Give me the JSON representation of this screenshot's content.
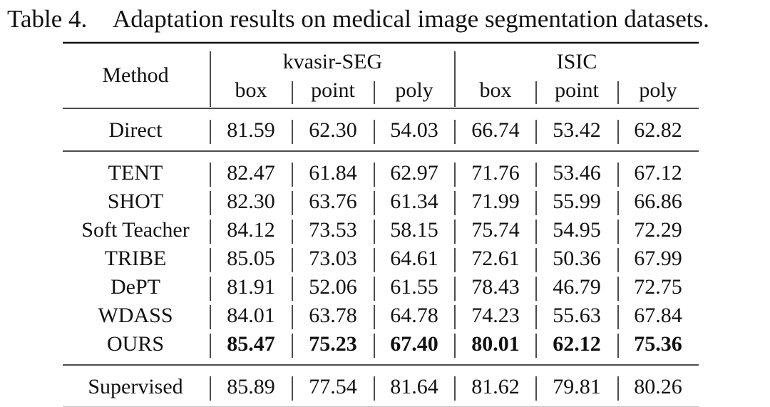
{
  "caption": {
    "label": "Table 4.",
    "text": "Adaptation results on medical image segmentation datasets."
  },
  "table": {
    "method_header": "Method",
    "groups": [
      {
        "name": "kvasir-SEG",
        "columns": [
          "box",
          "point",
          "poly"
        ]
      },
      {
        "name": "ISIC",
        "columns": [
          "box",
          "point",
          "poly"
        ]
      }
    ],
    "sections": [
      {
        "rows": [
          {
            "method": "Direct",
            "values": [
              "81.59",
              "62.30",
              "54.03",
              "66.74",
              "53.42",
              "62.82"
            ]
          }
        ]
      },
      {
        "rows": [
          {
            "method": "TENT",
            "values": [
              "82.47",
              "61.84",
              "62.97",
              "71.76",
              "53.46",
              "67.12"
            ]
          },
          {
            "method": "SHOT",
            "values": [
              "82.30",
              "63.76",
              "61.34",
              "71.99",
              "55.99",
              "66.86"
            ]
          },
          {
            "method": "Soft Teacher",
            "values": [
              "84.12",
              "73.53",
              "58.15",
              "75.74",
              "54.95",
              "72.29"
            ]
          },
          {
            "method": "TRIBE",
            "values": [
              "85.05",
              "73.03",
              "64.61",
              "72.61",
              "50.36",
              "67.99"
            ]
          },
          {
            "method": "DePT",
            "values": [
              "81.91",
              "52.06",
              "61.55",
              "78.43",
              "46.79",
              "72.75"
            ]
          },
          {
            "method": "WDASS",
            "values": [
              "84.01",
              "63.78",
              "64.78",
              "74.23",
              "55.63",
              "67.84"
            ]
          },
          {
            "method": "OURS",
            "values": [
              "85.47",
              "75.23",
              "67.40",
              "80.01",
              "62.12",
              "75.36"
            ]
          }
        ]
      },
      {
        "rows": [
          {
            "method": "Supervised",
            "values": [
              "85.89",
              "77.54",
              "81.64",
              "81.62",
              "79.81",
              "80.26"
            ]
          }
        ]
      }
    ]
  }
}
